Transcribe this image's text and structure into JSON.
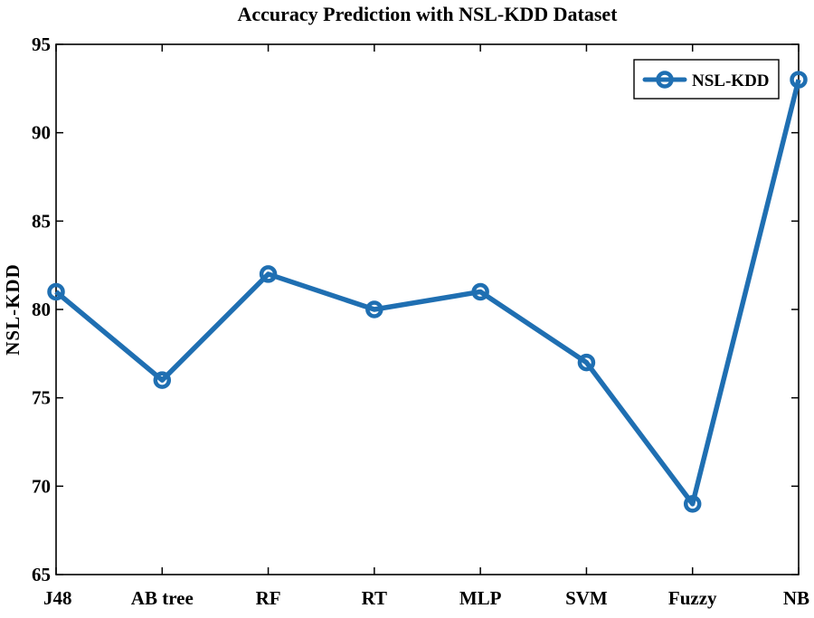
{
  "chart_data": {
    "type": "line",
    "title": "Accuracy Prediction with NSL-KDD Dataset",
    "xlabel": "",
    "ylabel": "NSL-KDD",
    "categories": [
      "J48",
      "AB tree",
      "RF",
      "RT",
      "MLP",
      "SVM",
      "Fuzzy",
      "NB"
    ],
    "series": [
      {
        "name": "NSL-KDD",
        "values": [
          81,
          76,
          82,
          80,
          81,
          77,
          69,
          93
        ],
        "color": "#1f6fb2"
      }
    ],
    "ylim": [
      65,
      95
    ],
    "yticks": [
      65,
      70,
      75,
      80,
      85,
      90,
      95
    ],
    "legend": "top-right",
    "grid": false
  }
}
